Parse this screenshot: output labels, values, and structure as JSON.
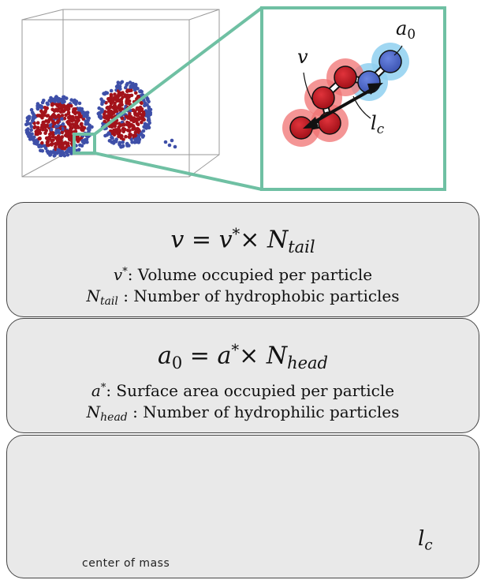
{
  "inset": {
    "label_a0": "a",
    "label_a0_sub": "0",
    "label_v": "v",
    "label_lc": "l",
    "label_lc_sub": "c"
  },
  "box1": {
    "eq_lhs": "v",
    "eq_eq": " = ",
    "eq_rhs_var": "v",
    "eq_times": "× ",
    "eq_N": "N",
    "eq_N_sub": "tail",
    "line1_var": "v",
    "line1_text": ": Volume occupied per particle",
    "line2_N": "N",
    "line2_sub": "tail",
    "line2_text": " : Number of hydrophobic particles"
  },
  "box2": {
    "eq_lhs": "a",
    "eq_lhs_sub": "0",
    "eq_eq": " = ",
    "eq_rhs_var": "a",
    "eq_times": "× ",
    "eq_N": "N",
    "eq_N_sub": "head",
    "line1_var": "a",
    "line1_text": ": Surface area occupied per particle",
    "line2_N": "N",
    "line2_sub": "head",
    "line2_text": " : Number of hydrophilic particles"
  },
  "box3": {
    "com_label": "center of mass",
    "lc_label": "l",
    "lc_sub": "c"
  },
  "colors": {
    "red": "#b0141d",
    "blue": "#4a64c4",
    "green": "#6fc0a3",
    "halo_red": "#f07272",
    "halo_blue": "#8fd0f0"
  }
}
